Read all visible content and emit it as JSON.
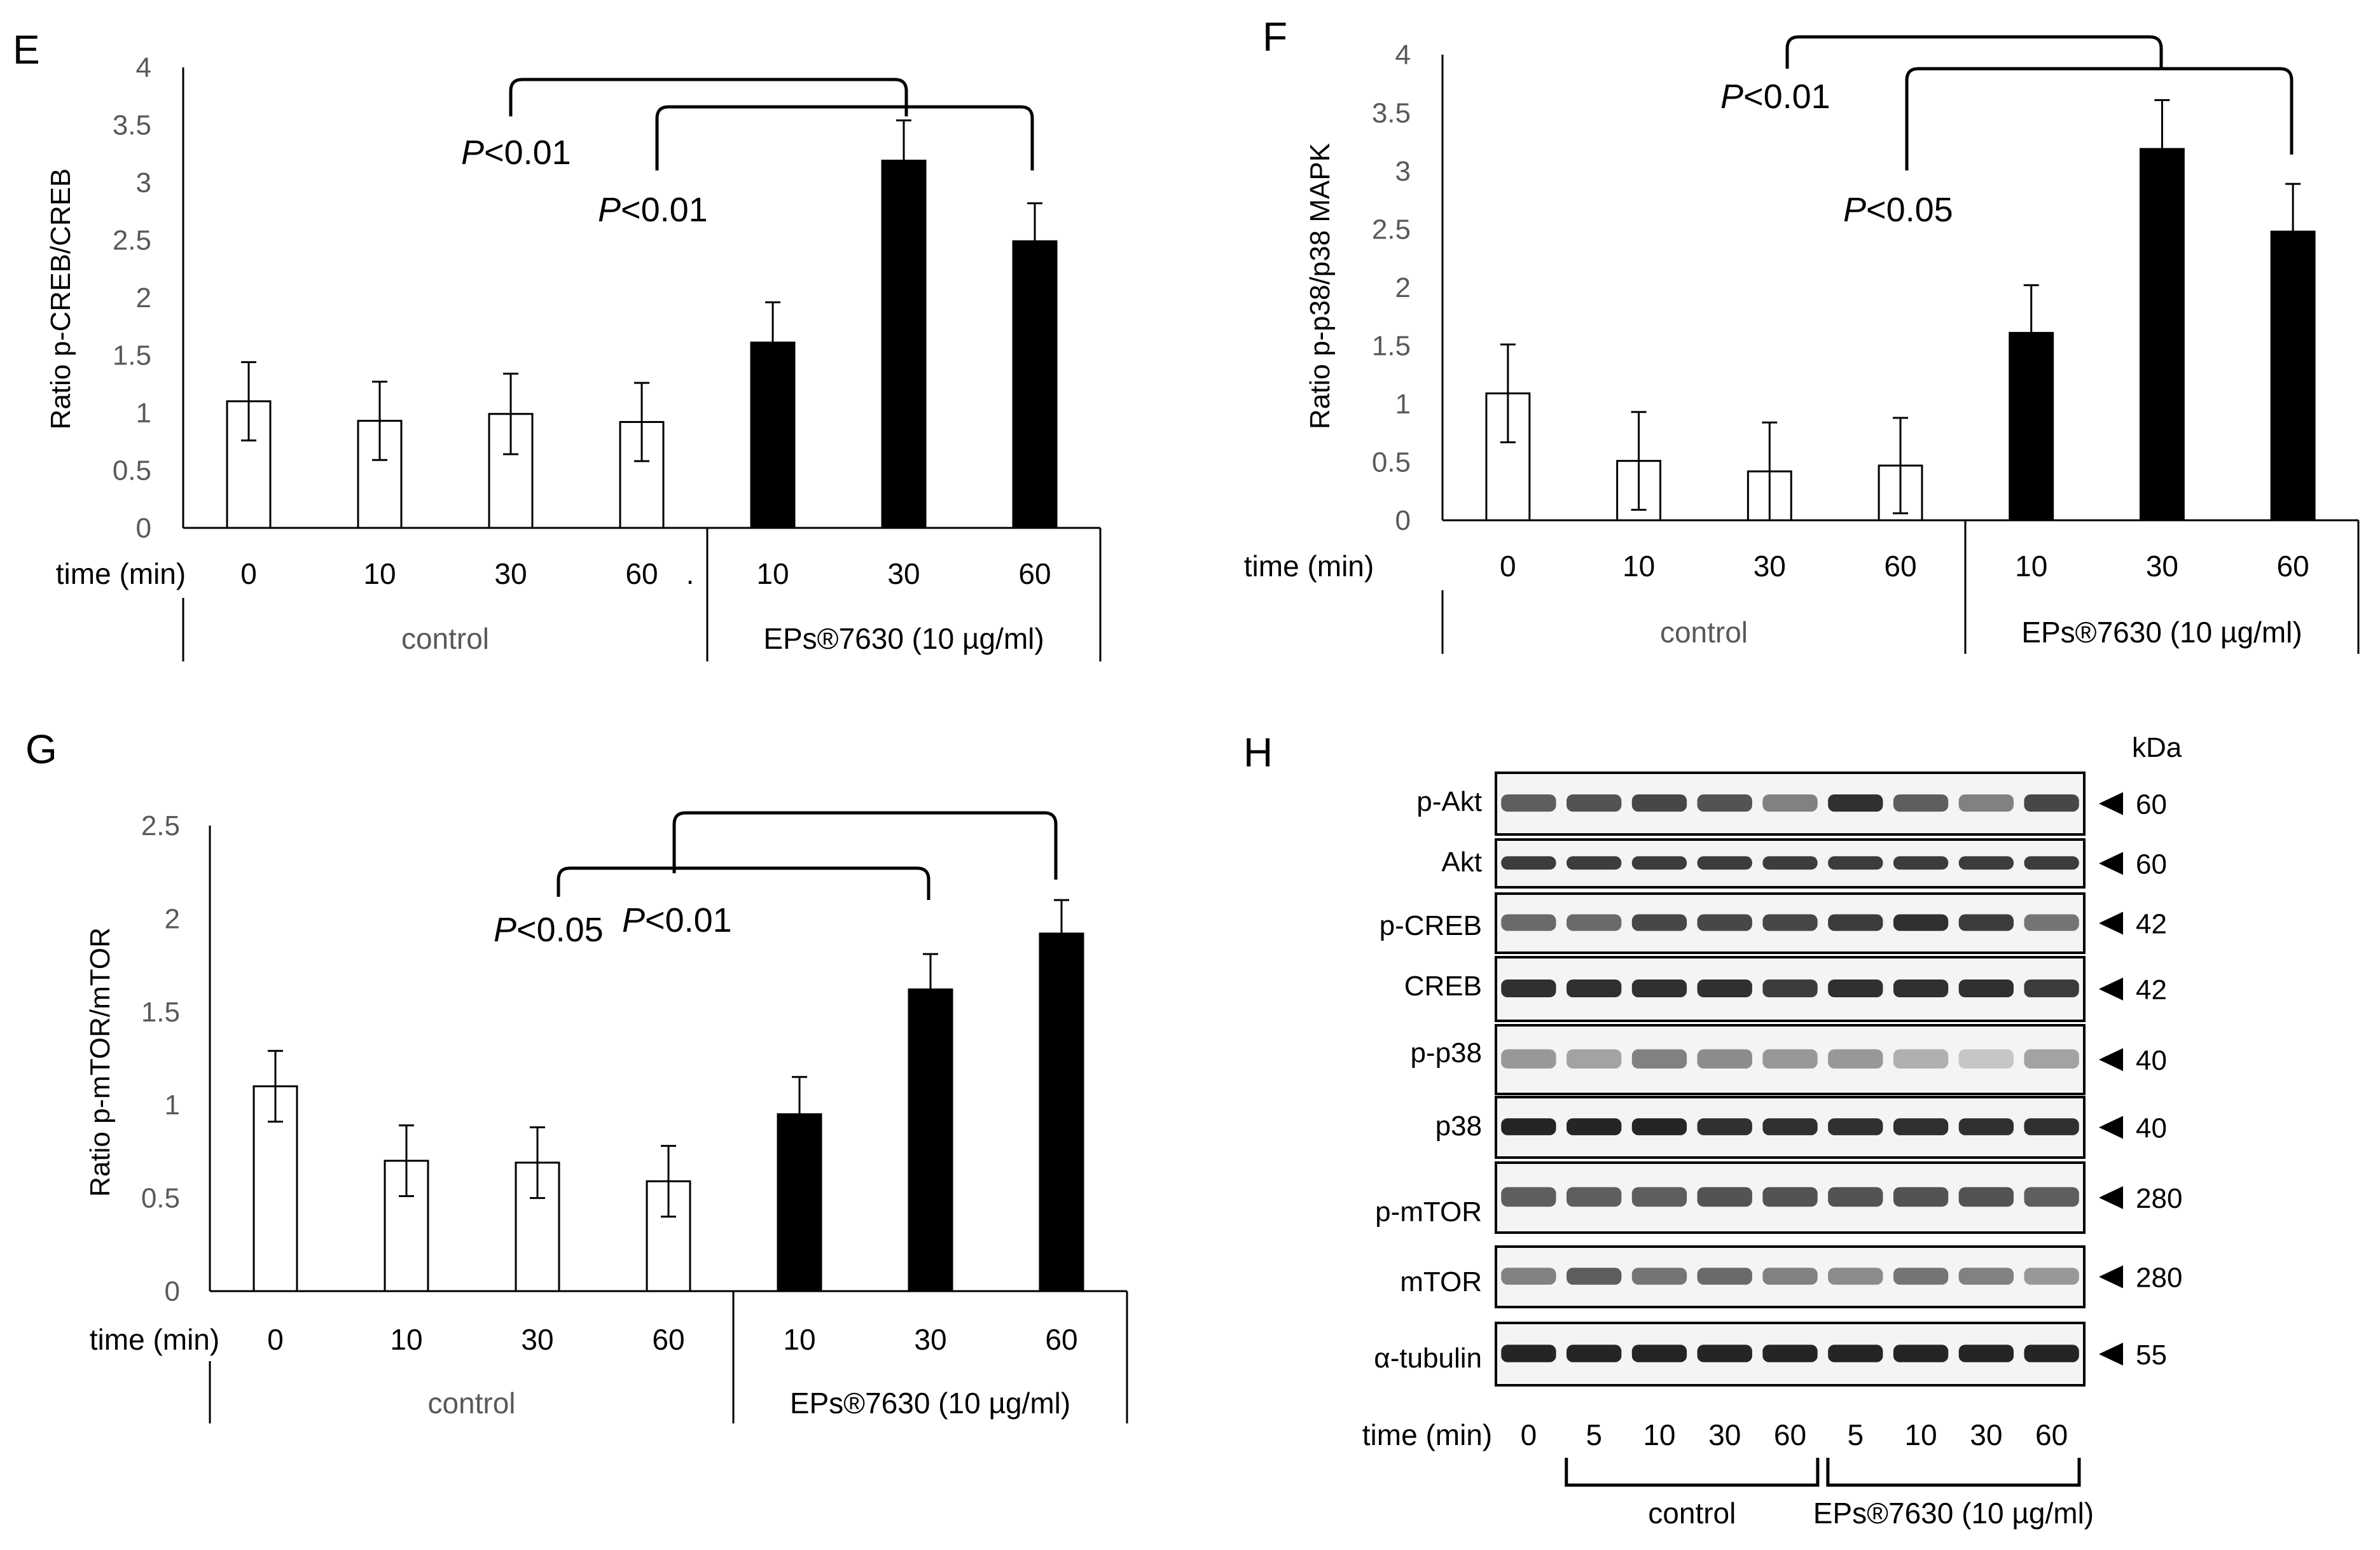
{
  "chart_data": [
    {
      "type": "bar",
      "panel": "E",
      "ylabel": "Ratio p-CREB/CREB",
      "ylim": [
        0,
        4
      ],
      "yticks": [
        "0",
        "0.5",
        "1",
        "1.5",
        "2",
        "2.5",
        "3",
        "3.5",
        "4"
      ],
      "x_title": "time (min)",
      "categories": [
        "0",
        "10",
        "30",
        "60",
        "10",
        "30",
        "60"
      ],
      "values": [
        1.1,
        0.93,
        0.99,
        0.92,
        1.61,
        3.19,
        2.49
      ],
      "errors": [
        0.34,
        0.34,
        0.35,
        0.34,
        0.35,
        0.35,
        0.33
      ],
      "fill": [
        "white",
        "white",
        "white",
        "white",
        "black",
        "black",
        "black"
      ],
      "groups": [
        {
          "label": "control",
          "start": 0,
          "end": 3
        },
        {
          "label": "EPs®7630 (10 µg/ml)",
          "start": 4,
          "end": 6
        }
      ],
      "separator_mark": ".",
      "significance": [
        {
          "from": 2,
          "to": 5,
          "label_prefix": "P",
          "label_rest": "<0.01"
        },
        {
          "from": 3,
          "to": 6,
          "label_prefix": "P",
          "label_rest": "<0.01"
        }
      ]
    },
    {
      "type": "bar",
      "panel": "F",
      "ylabel": "Ratio p-p38/p38 MAPK",
      "ylim": [
        0,
        4
      ],
      "yticks": [
        "0",
        "0.5",
        "1",
        "1.5",
        "2",
        "2.5",
        "3",
        "3.5",
        "4"
      ],
      "x_title": "time (min)",
      "categories": [
        "0",
        "10",
        "30",
        "60",
        "10",
        "30",
        "60"
      ],
      "values": [
        1.09,
        0.51,
        0.42,
        0.47,
        1.61,
        3.19,
        2.48
      ],
      "errors": [
        0.42,
        0.42,
        0.42,
        0.41,
        0.41,
        0.42,
        0.41
      ],
      "fill": [
        "white",
        "white",
        "white",
        "white",
        "black",
        "black",
        "black"
      ],
      "groups": [
        {
          "label": "control",
          "start": 0,
          "end": 3
        },
        {
          "label": "EPs®7630 (10 µg/ml)",
          "start": 4,
          "end": 6
        }
      ],
      "significance": [
        {
          "from": 2,
          "to": 5,
          "label_prefix": "P",
          "label_rest": "<0.01"
        },
        {
          "from": 3,
          "to": 6,
          "label_prefix": "P",
          "label_rest": "<0.05"
        }
      ]
    },
    {
      "type": "bar",
      "panel": "G",
      "ylabel": "Ratio p-mTOR/mTOR",
      "ylim": [
        0,
        2.5
      ],
      "yticks": [
        "0",
        "0.5",
        "1",
        "1.5",
        "2",
        "2.5"
      ],
      "x_title": "time (min)",
      "categories": [
        "0",
        "10",
        "30",
        "60",
        "10",
        "30",
        "60"
      ],
      "values": [
        1.1,
        0.7,
        0.69,
        0.59,
        0.95,
        1.62,
        1.92
      ],
      "errors": [
        0.19,
        0.19,
        0.19,
        0.19,
        0.2,
        0.19,
        0.18
      ],
      "fill": [
        "white",
        "white",
        "white",
        "white",
        "black",
        "black",
        "black"
      ],
      "groups": [
        {
          "label": "control",
          "start": 0,
          "end": 3
        },
        {
          "label": "EPs®7630 (10 µg/ml)",
          "start": 4,
          "end": 6
        }
      ],
      "significance": [
        {
          "from": 2,
          "to": 5,
          "label_prefix": "P",
          "label_rest": "<0.05"
        },
        {
          "from": 3,
          "to": 6,
          "label_prefix": "P",
          "label_rest": "<0.01"
        }
      ]
    }
  ],
  "western_blot": {
    "panel": "H",
    "unit_label": "kDa",
    "rows": [
      {
        "label": "p-Akt",
        "kda": "60"
      },
      {
        "label": "Akt",
        "kda": "60"
      },
      {
        "label": "p-CREB",
        "kda": "42"
      },
      {
        "label": "CREB",
        "kda": "42"
      },
      {
        "label": "p-p38",
        "kda": "40"
      },
      {
        "label": "p38",
        "kda": "40"
      },
      {
        "label": "p-mTOR",
        "kda": "280"
      },
      {
        "label": "mTOR",
        "kda": "280"
      },
      {
        "label": "α-tubulin",
        "kda": "55"
      }
    ],
    "band_intensity": [
      [
        0.7,
        0.75,
        0.8,
        0.75,
        0.55,
        0.9,
        0.7,
        0.55,
        0.8
      ],
      [
        0.85,
        0.85,
        0.85,
        0.85,
        0.85,
        0.85,
        0.85,
        0.85,
        0.85
      ],
      [
        0.65,
        0.65,
        0.8,
        0.8,
        0.8,
        0.85,
        0.9,
        0.85,
        0.6
      ],
      [
        0.9,
        0.9,
        0.9,
        0.9,
        0.85,
        0.9,
        0.9,
        0.9,
        0.85
      ],
      [
        0.45,
        0.4,
        0.55,
        0.5,
        0.45,
        0.45,
        0.35,
        0.25,
        0.4
      ],
      [
        0.95,
        0.95,
        0.95,
        0.9,
        0.9,
        0.9,
        0.9,
        0.9,
        0.9
      ],
      [
        0.7,
        0.7,
        0.7,
        0.75,
        0.75,
        0.75,
        0.75,
        0.75,
        0.7
      ],
      [
        0.55,
        0.7,
        0.6,
        0.65,
        0.55,
        0.5,
        0.6,
        0.55,
        0.45
      ],
      [
        0.95,
        0.95,
        0.95,
        0.95,
        0.95,
        0.95,
        0.95,
        0.95,
        0.95
      ]
    ],
    "x_title": "time (min)",
    "lanes": [
      "0",
      "5",
      "10",
      "30",
      "60",
      "5",
      "10",
      "30",
      "60"
    ],
    "groups": [
      {
        "label": "control",
        "start": 1,
        "end": 4
      },
      {
        "label": "EPs®7630  (10 µg/ml)",
        "start": 5,
        "end": 8
      }
    ]
  }
}
